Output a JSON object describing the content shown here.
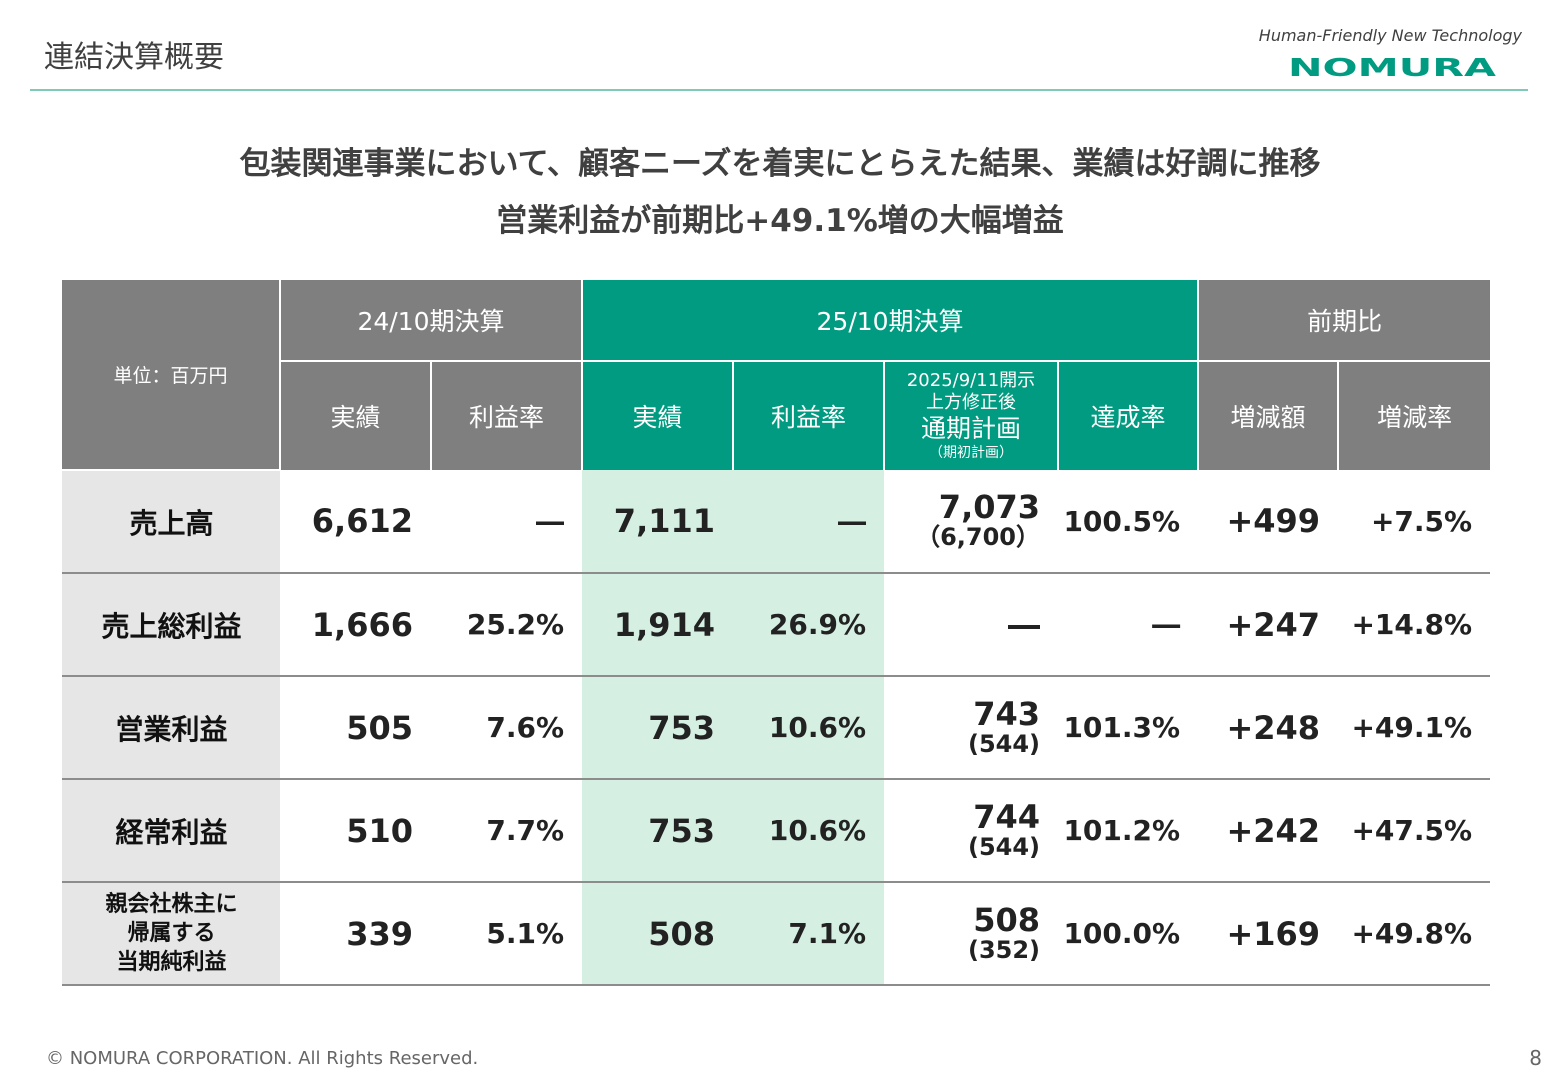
{
  "header": {
    "title": "連結決算概要",
    "tagline": "Human-Friendly New Technology",
    "logo_text": "NOMURA",
    "accent_color": "#009b80"
  },
  "headline": {
    "line1": "包装関連事業において、顧客ニーズを着実にとらえた結果、業績は好調に推移",
    "line2": "営業利益が前期比+49.1%増の大幅増益"
  },
  "table": {
    "unit": "単位：百万円",
    "groups": {
      "prev": "24/10期決算",
      "curr": "25/10期決算",
      "yoy": "前期比"
    },
    "columns": {
      "prev_actual": "実績",
      "prev_margin": "利益率",
      "curr_actual": "実績",
      "curr_margin": "利益率",
      "plan_line1": "2025/9/11開示",
      "plan_line2": "上方修正後",
      "plan_line3": "通期計画",
      "plan_line4": "（期初計画）",
      "achievement": "達成率",
      "change_amount": "増減額",
      "change_rate": "増減率"
    },
    "rows": [
      {
        "label": "売上高",
        "prev_actual": "6,612",
        "prev_margin": "―",
        "curr_actual": "7,111",
        "curr_margin": "―",
        "plan": "7,073",
        "plan_initial": "（6,700）",
        "achievement": "100.5%",
        "change_amount": "+499",
        "change_rate": "+7.5%"
      },
      {
        "label": "売上総利益",
        "prev_actual": "1,666",
        "prev_margin": "25.2%",
        "curr_actual": "1,914",
        "curr_margin": "26.9%",
        "plan": "―",
        "plan_initial": "",
        "achievement": "―",
        "change_amount": "+247",
        "change_rate": "+14.8%"
      },
      {
        "label": "営業利益",
        "prev_actual": "505",
        "prev_margin": "7.6%",
        "curr_actual": "753",
        "curr_margin": "10.6%",
        "plan": "743",
        "plan_initial": "(544)",
        "achievement": "101.3%",
        "change_amount": "+248",
        "change_rate": "+49.1%"
      },
      {
        "label": "経常利益",
        "prev_actual": "510",
        "prev_margin": "7.7%",
        "curr_actual": "753",
        "curr_margin": "10.6%",
        "plan": "744",
        "plan_initial": "(544)",
        "achievement": "101.2%",
        "change_amount": "+242",
        "change_rate": "+47.5%"
      },
      {
        "label_lines": [
          "親会社株主に",
          "帰属する",
          "当期純利益"
        ],
        "prev_actual": "339",
        "prev_margin": "5.1%",
        "curr_actual": "508",
        "curr_margin": "7.1%",
        "plan": "508",
        "plan_initial": "(352)",
        "achievement": "100.0%",
        "change_amount": "+169",
        "change_rate": "+49.8%"
      }
    ]
  },
  "footer": {
    "copyright": "© NOMURA CORPORATION. All Rights Reserved.",
    "page": "8"
  }
}
